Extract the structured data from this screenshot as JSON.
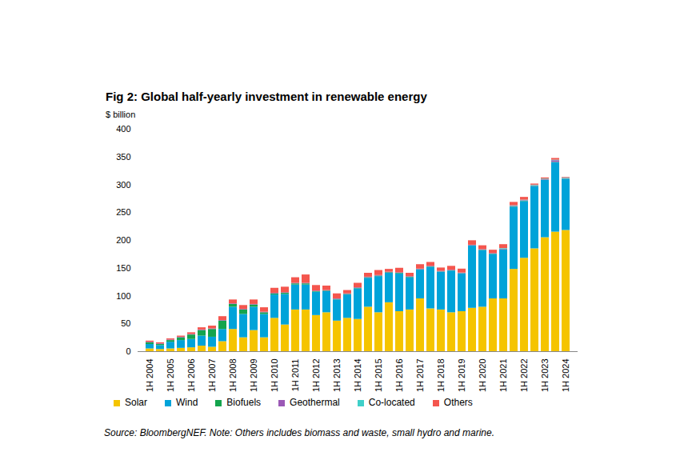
{
  "chart_data": {
    "type": "bar",
    "stacked": true,
    "title": "Fig 2: Global half-yearly investment in renewable energy",
    "y_label": "$ billion",
    "caption": "Source: BloombergNEF. Note: Others includes biomass and waste, small hydro and marine.",
    "categories": [
      "1H 2004",
      null,
      "1H 2005",
      null,
      "1H 2006",
      null,
      "1H 2007",
      null,
      "1H 2008",
      null,
      "1H 2009",
      null,
      "1H 2010",
      null,
      "1H 2011",
      null,
      "1H 2012",
      null,
      "1H 2013",
      null,
      "1H 2014",
      null,
      "1H 2015",
      null,
      "1H 2016",
      null,
      "1H 2017",
      null,
      "1H 2018",
      null,
      "1H 2019",
      null,
      "1H 2020",
      null,
      "1H 2021",
      null,
      "1H 2022",
      null,
      "1H 2023",
      null,
      "1H 2024"
    ],
    "series": [
      {
        "name": "Solar",
        "color": "#f5c400",
        "values": [
          5,
          4,
          5,
          6,
          7,
          10,
          8,
          18,
          40,
          25,
          38,
          25,
          60,
          48,
          75,
          75,
          65,
          70,
          55,
          60,
          58,
          80,
          70,
          88,
          72,
          75,
          95,
          77,
          75,
          70,
          72,
          78,
          80,
          95,
          95,
          148,
          168,
          185,
          205,
          215,
          218
        ]
      },
      {
        "name": "Wind",
        "color": "#00a3d9",
        "values": [
          8,
          7,
          12,
          14,
          15,
          18,
          18,
          22,
          40,
          42,
          42,
          42,
          42,
          55,
          45,
          45,
          42,
          38,
          38,
          42,
          55,
          52,
          65,
          53,
          68,
          58,
          52,
          75,
          68,
          75,
          68,
          112,
          102,
          80,
          88,
          112,
          102,
          112,
          103,
          125,
          92
        ]
      },
      {
        "name": "Biofuels",
        "color": "#14a44d",
        "values": [
          3,
          2,
          3,
          5,
          8,
          10,
          14,
          15,
          5,
          8,
          4,
          3,
          2,
          2,
          2,
          2,
          1,
          1,
          1,
          1,
          1,
          1,
          1,
          1,
          1,
          1,
          0.5,
          0.5,
          0.5,
          0.5,
          0.5,
          0.5,
          0.5,
          0.5,
          0.5,
          0.5,
          0.5,
          0.5,
          0.5,
          0.5,
          0.5
        ]
      },
      {
        "name": "Geothermal",
        "color": "#9b59b6",
        "values": [
          1,
          1,
          1,
          1,
          1,
          1,
          1,
          1,
          1,
          1,
          1,
          1,
          1,
          1,
          1,
          1,
          1,
          1,
          1,
          1,
          1,
          1,
          1,
          1,
          1,
          1,
          1,
          1,
          1,
          1,
          1,
          1,
          1,
          1,
          1,
          1,
          1,
          1,
          1,
          3,
          1
        ]
      },
      {
        "name": "Co-located",
        "color": "#3fd0c9",
        "values": [
          0,
          0,
          0,
          0,
          0,
          0,
          0,
          0,
          0,
          0,
          0,
          0,
          0,
          0,
          0,
          0,
          0,
          0,
          0,
          0,
          0,
          0,
          0,
          0,
          0,
          0,
          0,
          0,
          0,
          0,
          0,
          0,
          0,
          0,
          1,
          1,
          1,
          1,
          1,
          1,
          1
        ]
      },
      {
        "name": "Others",
        "color": "#f4564e",
        "values": [
          2,
          2,
          2,
          2,
          3,
          4,
          5,
          7,
          7,
          7,
          8,
          8,
          9,
          10,
          10,
          15,
          10,
          8,
          9,
          6,
          8,
          7,
          9,
          5,
          8,
          6,
          8,
          7,
          6,
          7,
          7,
          8,
          7,
          6,
          7,
          6,
          5,
          2,
          2,
          3,
          1
        ]
      }
    ],
    "ylim": [
      0,
      400
    ],
    "yticks": [
      0,
      50,
      100,
      150,
      200,
      250,
      300,
      350,
      400
    ],
    "grid": false,
    "legend": "bottom"
  }
}
